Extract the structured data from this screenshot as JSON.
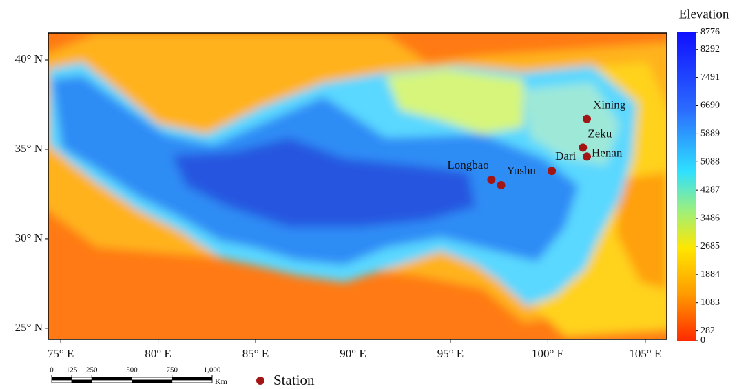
{
  "map": {
    "xlim": [
      74.36,
      106.1
    ],
    "ylim": [
      24.38,
      41.5
    ],
    "xticks": [
      {
        "value": 75,
        "label": "75° E"
      },
      {
        "value": 80,
        "label": "80° E"
      },
      {
        "value": 85,
        "label": "85° E"
      },
      {
        "value": 90,
        "label": "90° E"
      },
      {
        "value": 95,
        "label": "95° E"
      },
      {
        "value": 100,
        "label": "100° E"
      },
      {
        "value": 105,
        "label": "105° E"
      }
    ],
    "yticks": [
      {
        "value": 25,
        "label": "25° N"
      },
      {
        "value": 30,
        "label": "30° N"
      },
      {
        "value": 35,
        "label": "35° N"
      },
      {
        "value": 40,
        "label": "40° N"
      }
    ],
    "stations": [
      {
        "name": "Xining",
        "lon": 102.0,
        "lat": 36.7
      },
      {
        "name": "Zeku",
        "lon": 101.8,
        "lat": 35.1
      },
      {
        "name": "Henan",
        "lon": 102.0,
        "lat": 34.6
      },
      {
        "name": "Dari",
        "lon": 100.2,
        "lat": 33.8
      },
      {
        "name": "Longbao",
        "lon": 97.1,
        "lat": 33.3
      },
      {
        "name": "Yushu",
        "lon": 97.6,
        "lat": 33.0
      }
    ],
    "station_color": "#a31515",
    "legend": "Station"
  },
  "colorbar": {
    "title": "Elevation",
    "lim": [
      0,
      8776
    ],
    "ticks": [
      0,
      282,
      1083,
      1884,
      2685,
      3486,
      4287,
      5088,
      5889,
      6690,
      7491,
      8292,
      8776
    ]
  },
  "scale_bar": {
    "ticks": [
      0,
      125,
      250,
      500,
      750,
      {
        "value": 1000,
        "label": "1,000"
      }
    ],
    "unit": "Km"
  }
}
